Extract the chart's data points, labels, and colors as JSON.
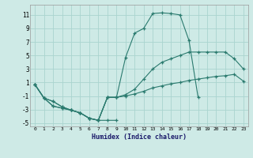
{
  "xlabel": "Humidex (Indice chaleur)",
  "background_color": "#ceeae6",
  "grid_color": "#aad4cf",
  "line_color": "#2a7a6e",
  "xlim": [
    -0.5,
    23.5
  ],
  "ylim": [
    -5.5,
    12.5
  ],
  "xticks": [
    0,
    1,
    2,
    3,
    4,
    5,
    6,
    7,
    8,
    9,
    10,
    11,
    12,
    13,
    14,
    15,
    16,
    17,
    18,
    19,
    20,
    21,
    22,
    23
  ],
  "yticks": [
    -5,
    -3,
    -1,
    1,
    3,
    5,
    7,
    9,
    11
  ],
  "line1_x": [
    0,
    1,
    2,
    3,
    4,
    5,
    6,
    7,
    8,
    9
  ],
  "line1_y": [
    0.7,
    -1.3,
    -2.5,
    -2.8,
    -3.1,
    -3.5,
    -4.3,
    -4.6,
    -4.6,
    -4.6
  ],
  "line2_x": [
    0,
    1,
    2,
    3,
    4,
    5,
    6,
    7,
    8,
    9,
    10,
    11,
    12,
    13,
    14,
    15,
    16,
    17,
    18
  ],
  "line2_y": [
    0.7,
    -1.3,
    -2.5,
    -2.8,
    -3.1,
    -3.5,
    -4.3,
    -4.6,
    -1.2,
    -1.2,
    4.7,
    8.3,
    9.0,
    11.2,
    11.3,
    11.2,
    11.0,
    7.2,
    -1.2
  ],
  "line3_x": [
    0,
    1,
    2,
    3,
    4,
    5,
    6,
    7,
    8,
    9,
    10,
    11,
    12,
    13,
    14,
    15,
    16,
    17,
    18,
    19,
    20,
    21,
    22,
    23
  ],
  "line3_y": [
    0.7,
    -1.3,
    -1.8,
    -2.6,
    -3.1,
    -3.5,
    -4.3,
    -4.6,
    -1.2,
    -1.2,
    -0.8,
    0.0,
    1.5,
    3.0,
    4.0,
    4.5,
    5.0,
    5.5,
    5.5,
    5.5,
    5.5,
    5.5,
    4.5,
    3.0
  ],
  "line4_x": [
    0,
    1,
    2,
    3,
    4,
    5,
    6,
    7,
    8,
    9,
    10,
    11,
    12,
    13,
    14,
    15,
    16,
    17,
    18,
    19,
    20,
    21,
    22,
    23
  ],
  "line4_y": [
    0.7,
    -1.3,
    -1.8,
    -2.6,
    -3.1,
    -3.5,
    -4.3,
    -4.6,
    -1.2,
    -1.2,
    -1.0,
    -0.7,
    -0.3,
    0.2,
    0.5,
    0.8,
    1.0,
    1.3,
    1.5,
    1.7,
    1.9,
    2.0,
    2.2,
    1.2
  ]
}
